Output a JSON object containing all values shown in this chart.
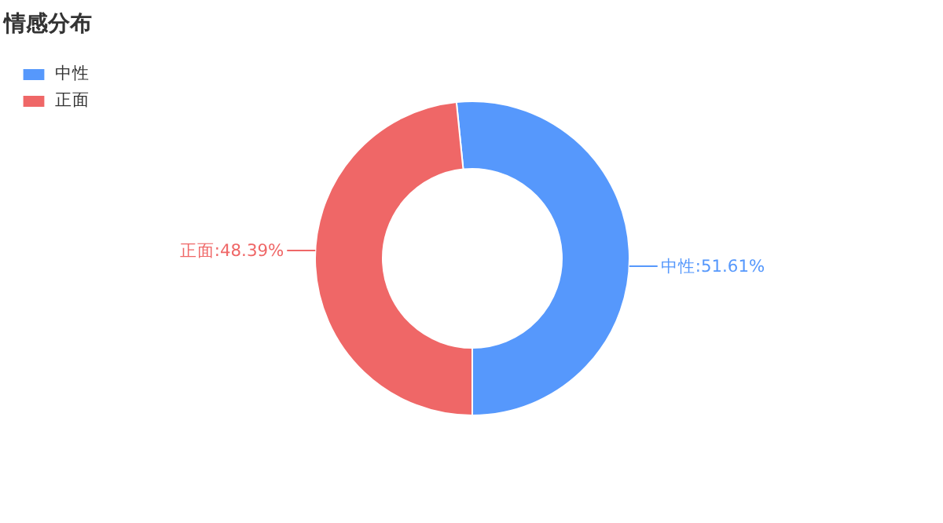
{
  "chart_data": {
    "type": "donut",
    "title": "情感分布",
    "categories": [
      "中性",
      "正面"
    ],
    "values": [
      51.61,
      48.39
    ],
    "colors": [
      "#5698fc",
      "#ef6767"
    ],
    "value_labels": [
      "中性:51.61%",
      "正面:48.39%"
    ],
    "legend": "top left"
  }
}
